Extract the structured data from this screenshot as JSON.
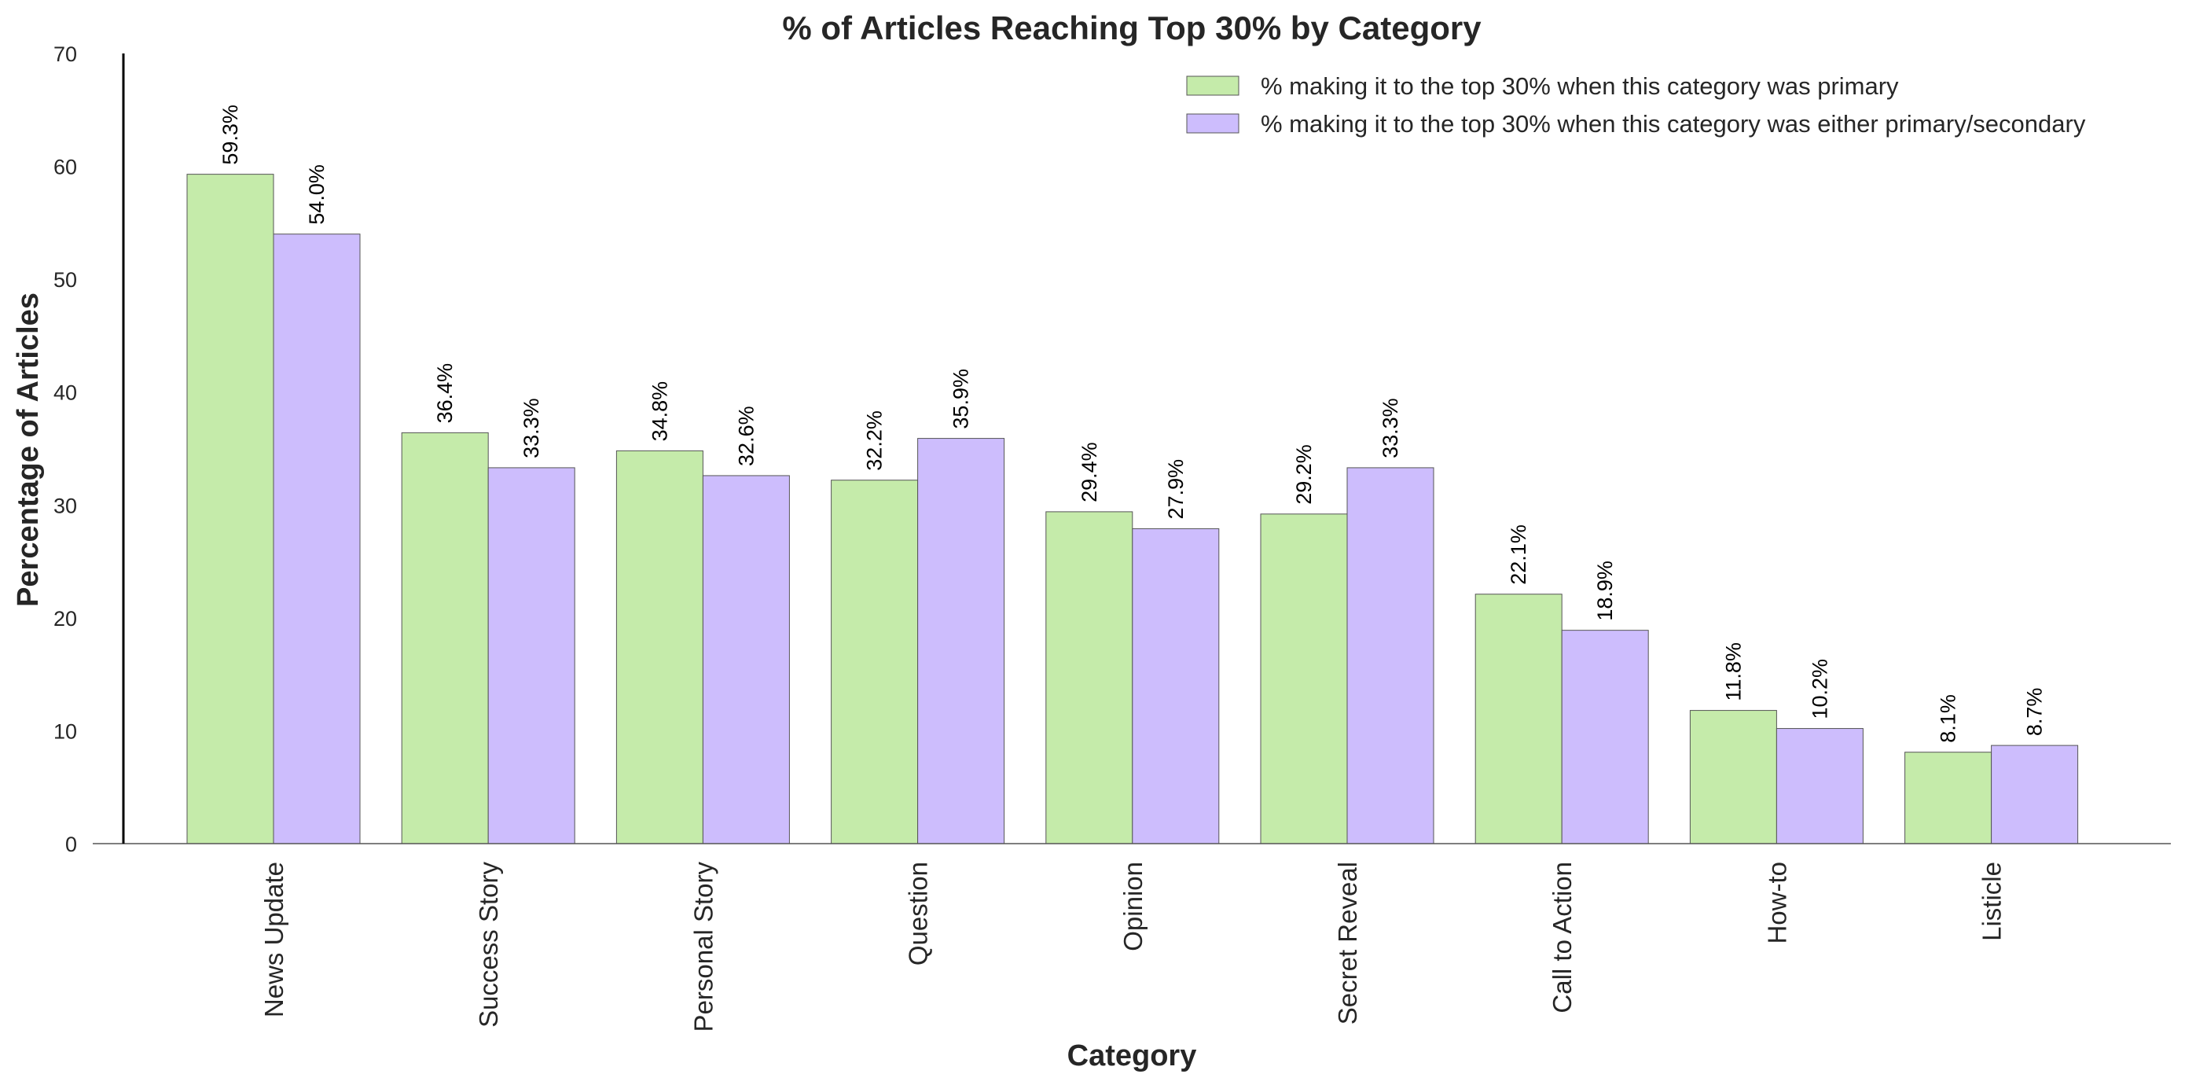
{
  "chart_data": {
    "type": "bar",
    "title": "% of Articles Reaching Top 30% by Category",
    "xlabel": "Category",
    "ylabel": "Percentage of Articles",
    "ylim": [
      0,
      70
    ],
    "yticks": [
      0,
      10,
      20,
      30,
      40,
      50,
      60,
      70
    ],
    "grid": false,
    "legend_position": "top-right",
    "categories": [
      "News Update",
      "Success Story",
      "Personal Story",
      "Question",
      "Opinion",
      "Secret Reveal",
      "Call to Action",
      "How-to",
      "Listicle"
    ],
    "series": [
      {
        "name": "% making it to the top 30% when this category was primary",
        "color": "#c5ebaa",
        "values": [
          59.3,
          36.4,
          34.8,
          32.2,
          29.4,
          29.2,
          22.1,
          11.8,
          8.1
        ],
        "labels": [
          "59.3%",
          "36.4%",
          "34.8%",
          "32.2%",
          "29.4%",
          "29.2%",
          "22.1%",
          "11.8%",
          "8.1%"
        ]
      },
      {
        "name": "% making it to the top 30% when this category was either primary/secondary",
        "color": "#cdbdfd",
        "values": [
          54.0,
          33.3,
          32.6,
          35.9,
          27.9,
          33.3,
          18.9,
          10.2,
          8.7
        ],
        "labels": [
          "54.0%",
          "33.3%",
          "32.6%",
          "35.9%",
          "27.9%",
          "33.3%",
          "18.9%",
          "10.2%",
          "8.7%"
        ]
      }
    ]
  }
}
